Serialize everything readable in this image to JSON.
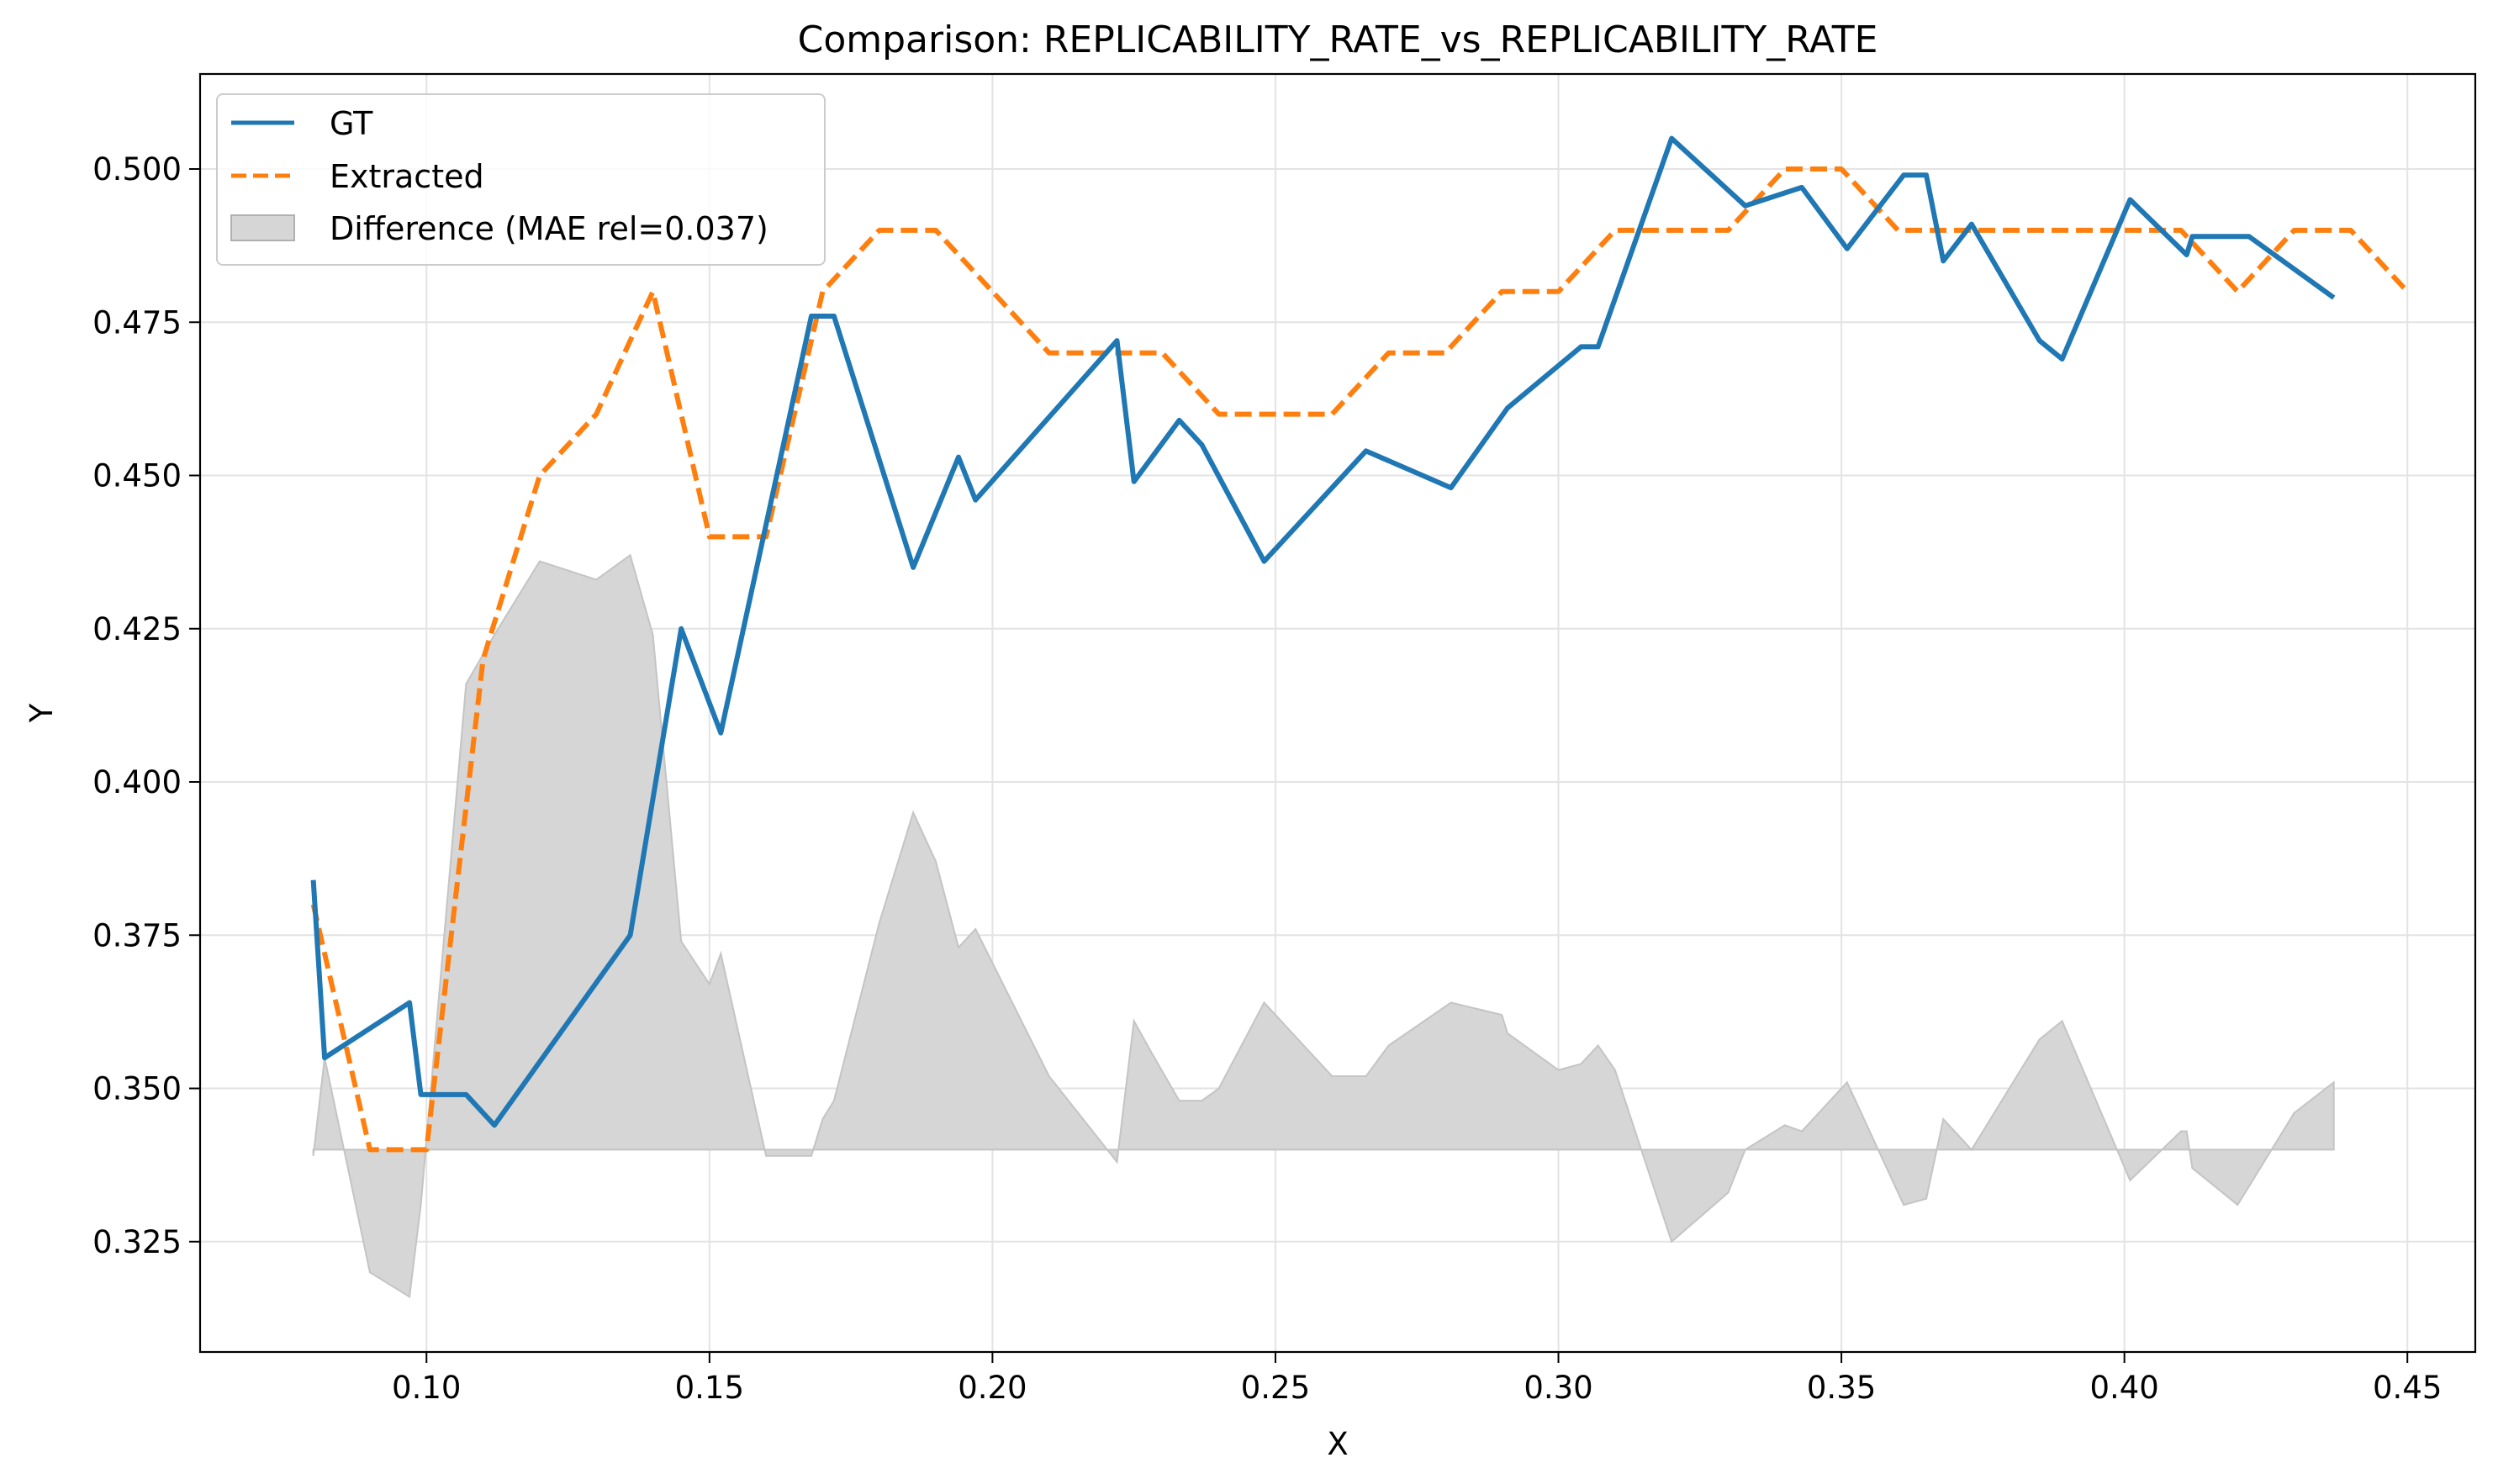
{
  "chart_data": {
    "type": "line",
    "title": "Comparison: REPLICABILITY_RATE_vs_REPLICABILITY_RATE",
    "xlabel": "X",
    "ylabel": "Y",
    "xlim": [
      0.06,
      0.462
    ],
    "ylim": [
      0.307,
      0.5155
    ],
    "x_ticks": [
      0.1,
      0.15,
      0.2,
      0.25,
      0.3,
      0.35,
      0.4,
      0.45
    ],
    "x_tick_labels": [
      "0.10",
      "0.15",
      "0.20",
      "0.25",
      "0.30",
      "0.35",
      "0.40",
      "0.45"
    ],
    "y_ticks": [
      0.325,
      0.35,
      0.375,
      0.4,
      0.425,
      0.45,
      0.475,
      0.5
    ],
    "y_tick_labels": [
      "0.325",
      "0.350",
      "0.375",
      "0.400",
      "0.425",
      "0.450",
      "0.475",
      "0.500"
    ],
    "grid": true,
    "legend_position": "top-left",
    "series": [
      {
        "name": "GT",
        "color": "#1f77b4",
        "style": "solid",
        "x": [
          0.08,
          0.082,
          0.097,
          0.099,
          0.107,
          0.112,
          0.136,
          0.145,
          0.152,
          0.168,
          0.172,
          0.186,
          0.194,
          0.197,
          0.222,
          0.225,
          0.233,
          0.237,
          0.248,
          0.266,
          0.281,
          0.291,
          0.304,
          0.307,
          0.32,
          0.333,
          0.343,
          0.351,
          0.361,
          0.365,
          0.368,
          0.373,
          0.385,
          0.389,
          0.401,
          0.411,
          0.412,
          0.422,
          0.437
        ],
        "y": [
          0.384,
          0.355,
          0.364,
          0.349,
          0.349,
          0.344,
          0.375,
          0.425,
          0.408,
          0.476,
          0.476,
          0.435,
          0.453,
          0.446,
          0.472,
          0.449,
          0.459,
          0.455,
          0.436,
          0.454,
          0.448,
          0.461,
          0.471,
          0.471,
          0.505,
          0.494,
          0.497,
          0.487,
          0.499,
          0.499,
          0.485,
          0.491,
          0.472,
          0.469,
          0.495,
          0.486,
          0.489,
          0.489,
          0.479
        ]
      },
      {
        "name": "Extracted",
        "color": "#ff7f0e",
        "style": "dashed",
        "x": [
          0.08,
          0.09,
          0.1,
          0.11,
          0.12,
          0.13,
          0.14,
          0.15,
          0.16,
          0.17,
          0.18,
          0.19,
          0.2,
          0.21,
          0.22,
          0.23,
          0.24,
          0.25,
          0.26,
          0.27,
          0.28,
          0.29,
          0.3,
          0.31,
          0.32,
          0.33,
          0.34,
          0.35,
          0.36,
          0.37,
          0.38,
          0.39,
          0.4,
          0.41,
          0.42,
          0.43,
          0.44,
          0.45
        ],
        "y": [
          0.38,
          0.34,
          0.34,
          0.42,
          0.45,
          0.46,
          0.48,
          0.44,
          0.44,
          0.48,
          0.49,
          0.49,
          0.48,
          0.47,
          0.47,
          0.47,
          0.46,
          0.46,
          0.46,
          0.47,
          0.47,
          0.48,
          0.48,
          0.49,
          0.49,
          0.49,
          0.5,
          0.5,
          0.49,
          0.49,
          0.49,
          0.49,
          0.49,
          0.49,
          0.48,
          0.49,
          0.49,
          0.48
        ]
      },
      {
        "name": "Difference (MAE rel=0.037)",
        "type": "area",
        "color": "#b0b0b0",
        "baseline": 0.34,
        "x": [
          0.08,
          0.082,
          0.09,
          0.097,
          0.099,
          0.107,
          0.112,
          0.12,
          0.13,
          0.136,
          0.14,
          0.145,
          0.15,
          0.152,
          0.16,
          0.168,
          0.17,
          0.172,
          0.18,
          0.186,
          0.19,
          0.194,
          0.197,
          0.21,
          0.222,
          0.225,
          0.228,
          0.233,
          0.237,
          0.24,
          0.248,
          0.26,
          0.266,
          0.27,
          0.281,
          0.29,
          0.291,
          0.3,
          0.304,
          0.307,
          0.31,
          0.32,
          0.33,
          0.333,
          0.34,
          0.343,
          0.35,
          0.351,
          0.361,
          0.365,
          0.368,
          0.373,
          0.385,
          0.389,
          0.401,
          0.41,
          0.411,
          0.412,
          0.42,
          0.422,
          0.43,
          0.437
        ],
        "y": [
          0.339,
          0.355,
          0.32,
          0.316,
          0.331,
          0.416,
          0.424,
          0.436,
          0.433,
          0.437,
          0.424,
          0.374,
          0.367,
          0.372,
          0.339,
          0.339,
          0.345,
          0.348,
          0.377,
          0.395,
          0.387,
          0.373,
          0.376,
          0.352,
          0.338,
          0.361,
          0.356,
          0.348,
          0.348,
          0.35,
          0.364,
          0.352,
          0.352,
          0.357,
          0.364,
          0.362,
          0.359,
          0.353,
          0.354,
          0.357,
          0.353,
          0.325,
          0.333,
          0.34,
          0.344,
          0.343,
          0.35,
          0.351,
          0.331,
          0.332,
          0.345,
          0.34,
          0.358,
          0.361,
          0.335,
          0.343,
          0.343,
          0.337,
          0.331,
          0.334,
          0.346,
          0.351
        ]
      }
    ]
  }
}
